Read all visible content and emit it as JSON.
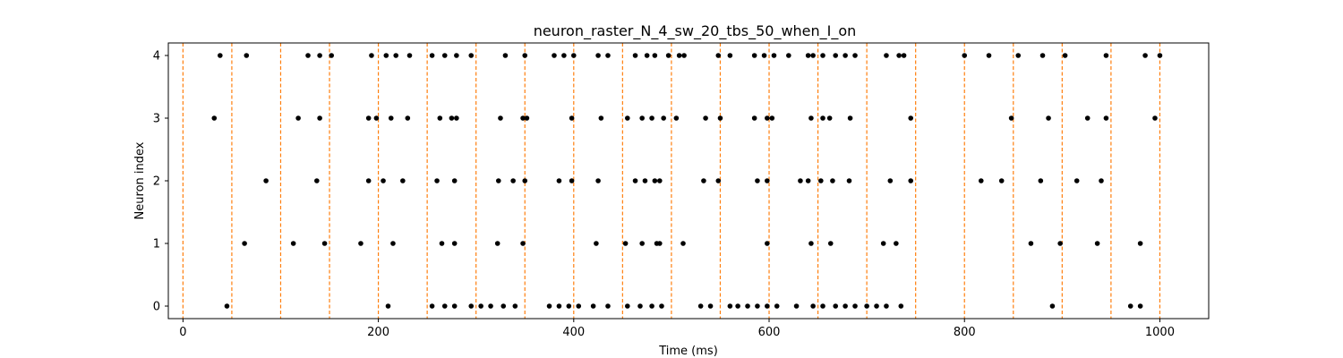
{
  "chart_data": {
    "type": "scatter",
    "title": "neuron_raster_N_4_sw_20_tbs_50_when_I_on",
    "xlabel": "Time (ms)",
    "ylabel": "Neuron index",
    "xlim": [
      -15,
      1050
    ],
    "ylim": [
      -0.2,
      4.2
    ],
    "x_ticks": [
      0,
      200,
      400,
      600,
      800,
      1000
    ],
    "y_ticks": [
      0,
      1,
      2,
      3,
      4
    ],
    "grid": false,
    "marker_color": "#000000",
    "vline_color": "#ff7f0e",
    "vlines": [
      0,
      50,
      100,
      150,
      200,
      250,
      300,
      350,
      400,
      450,
      500,
      550,
      600,
      650,
      700,
      750,
      800,
      850,
      900,
      950,
      1000
    ],
    "series": [
      {
        "neuron": 0,
        "times": [
          45,
          210,
          255,
          268,
          278,
          295,
          305,
          315,
          328,
          340,
          375,
          385,
          395,
          405,
          420,
          435,
          455,
          468,
          480,
          490,
          530,
          540,
          560,
          568,
          578,
          588,
          598,
          608,
          628,
          645,
          655,
          668,
          678,
          688,
          700,
          710,
          720,
          735,
          890,
          970,
          980
        ]
      },
      {
        "neuron": 1,
        "times": [
          63,
          113,
          145,
          182,
          215,
          265,
          278,
          322,
          348,
          423,
          453,
          470,
          485,
          488,
          512,
          598,
          643,
          663,
          717,
          730,
          868,
          898,
          936,
          980
        ]
      },
      {
        "neuron": 2,
        "times": [
          85,
          137,
          190,
          205,
          225,
          260,
          278,
          323,
          338,
          350,
          385,
          398,
          425,
          463,
          473,
          483,
          488,
          533,
          548,
          588,
          598,
          632,
          640,
          653,
          665,
          682,
          724,
          745,
          817,
          838,
          878,
          915,
          940
        ]
      },
      {
        "neuron": 3,
        "times": [
          32,
          118,
          140,
          190,
          198,
          213,
          230,
          263,
          275,
          280,
          325,
          348,
          352,
          398,
          428,
          455,
          470,
          480,
          492,
          505,
          535,
          550,
          585,
          598,
          603,
          643,
          655,
          662,
          683,
          745,
          848,
          886,
          926,
          945,
          995
        ]
      },
      {
        "neuron": 4,
        "times": [
          38,
          65,
          128,
          140,
          152,
          193,
          208,
          218,
          232,
          255,
          268,
          280,
          295,
          330,
          350,
          380,
          390,
          400,
          425,
          435,
          463,
          475,
          483,
          497,
          508,
          513,
          548,
          560,
          585,
          595,
          605,
          620,
          640,
          645,
          655,
          668,
          678,
          688,
          720,
          733,
          738,
          800,
          825,
          855,
          880,
          903,
          945,
          985,
          1000
        ]
      }
    ]
  }
}
